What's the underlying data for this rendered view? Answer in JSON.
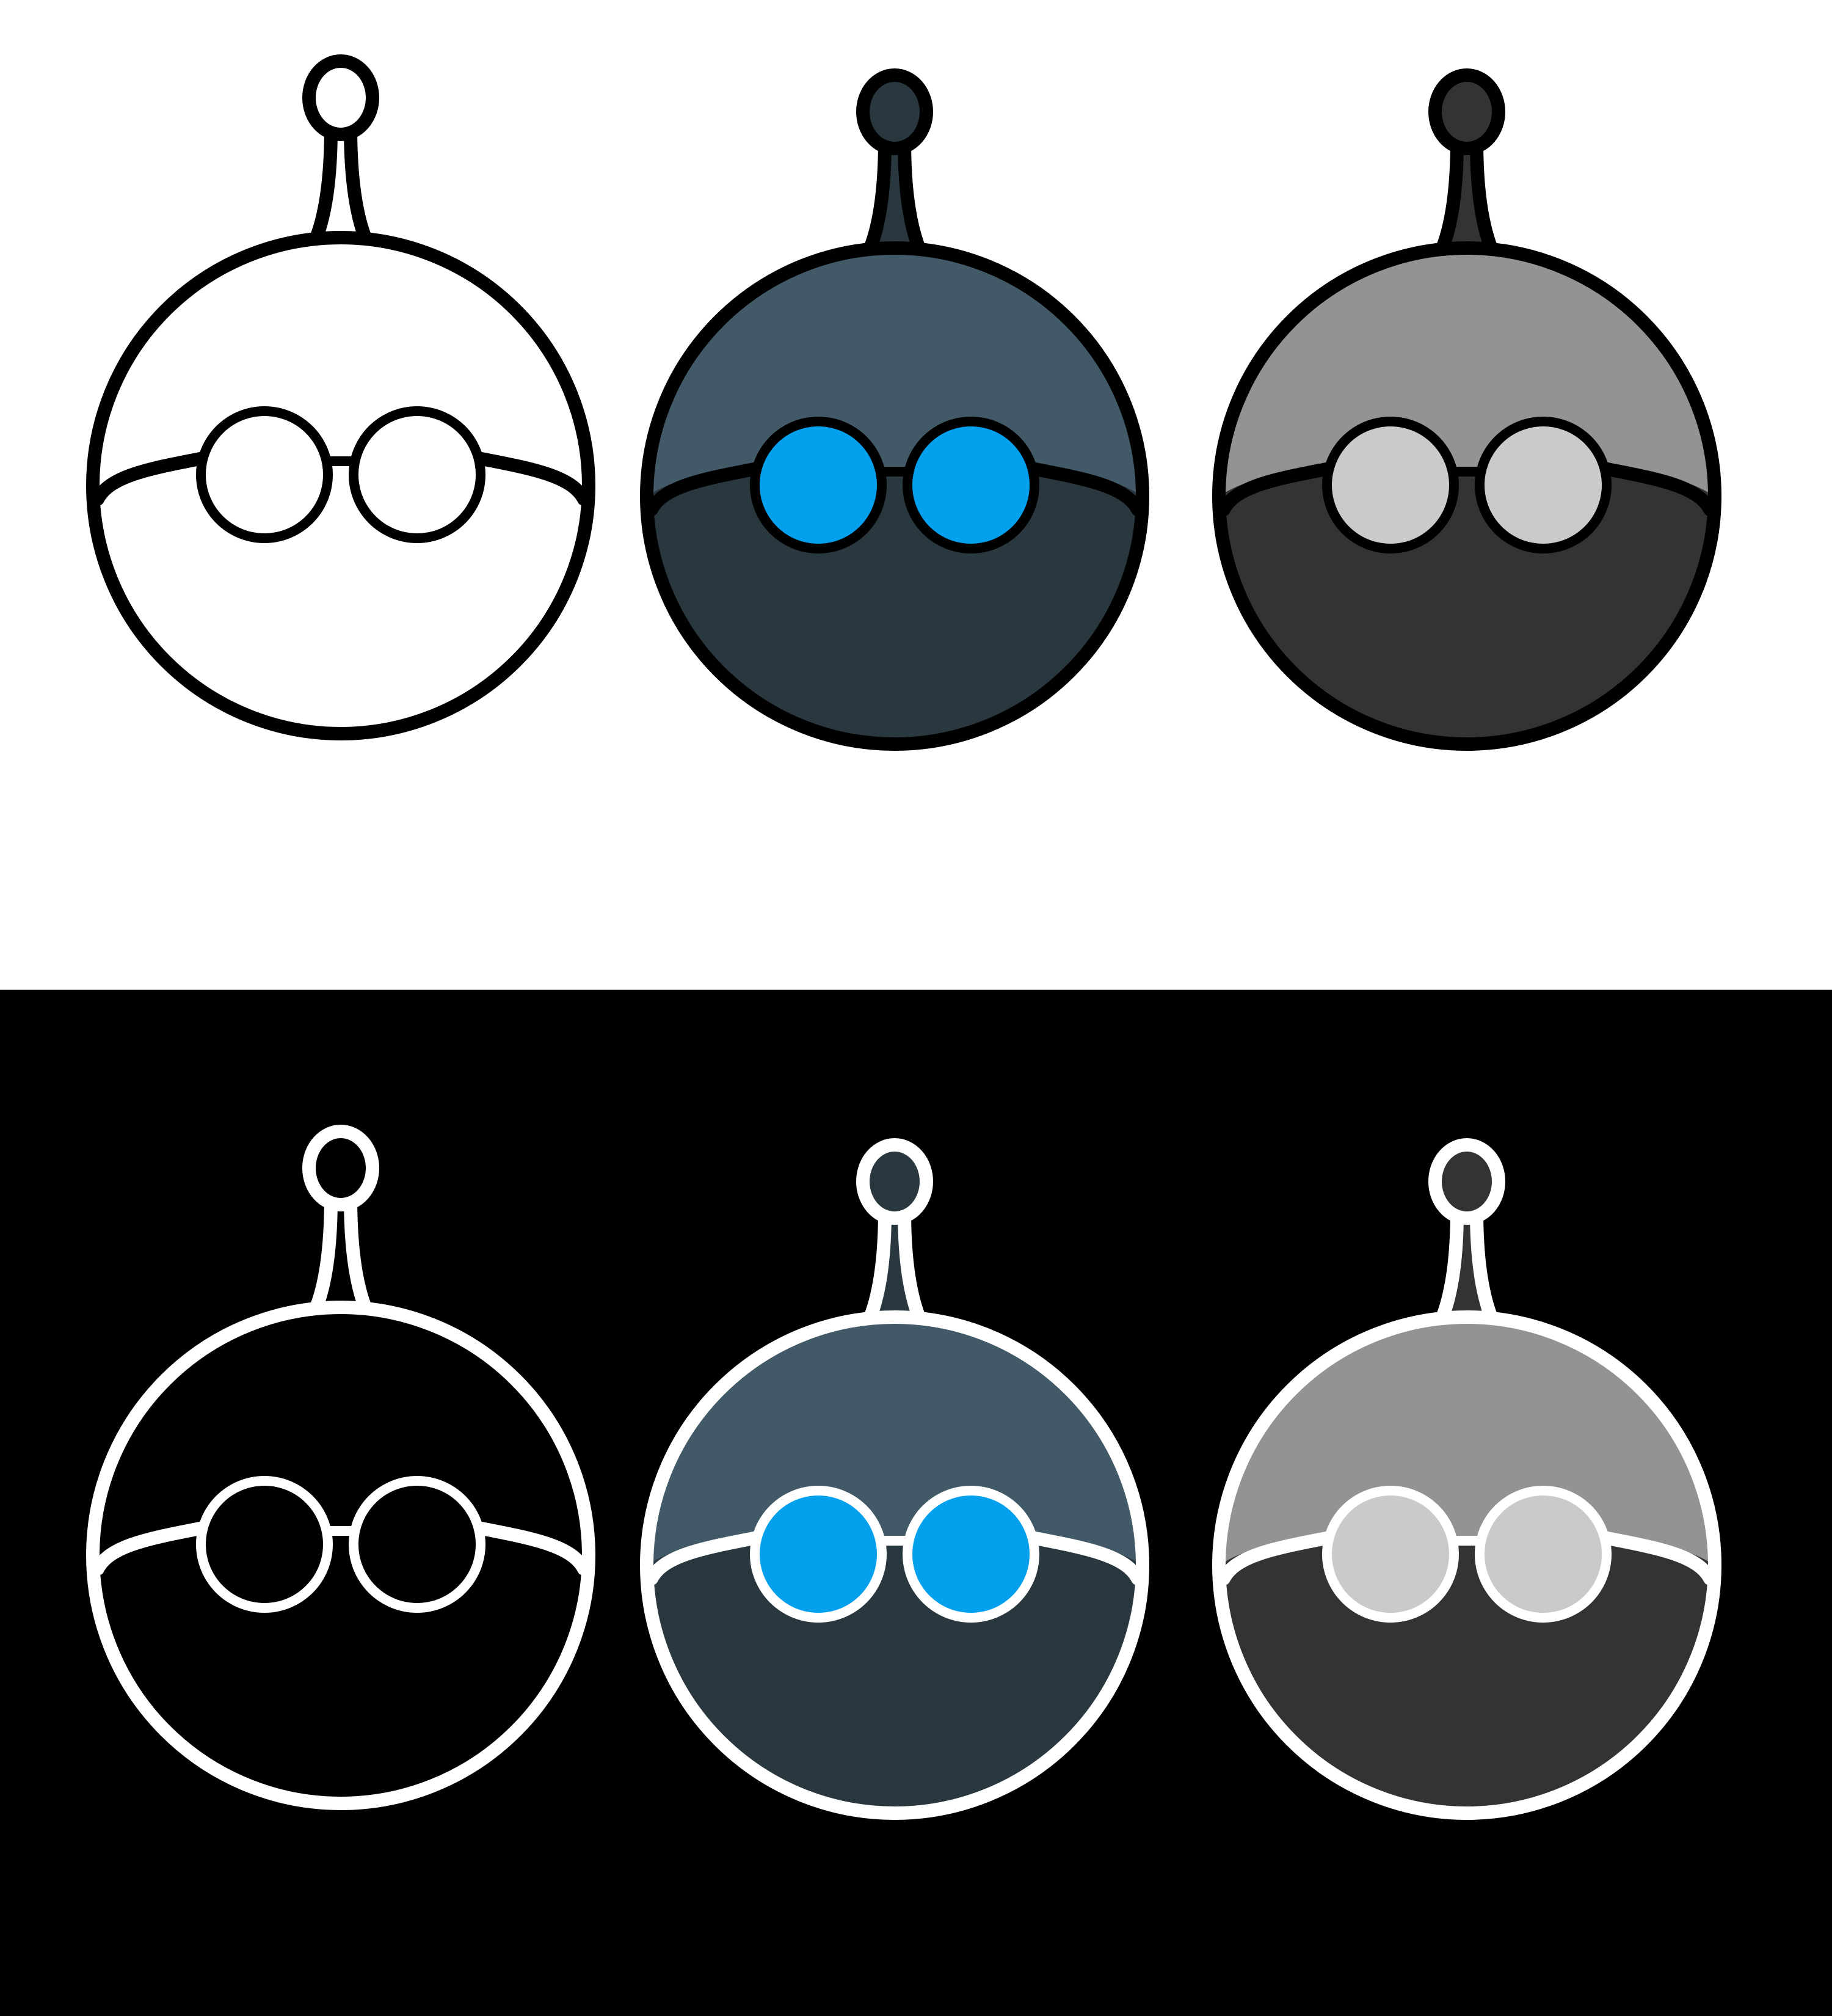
{
  "panels": [
    {
      "name": "light",
      "background": "#ffffff",
      "outline": "#000000",
      "robots": [
        {
          "variant": "outline",
          "icon": "robot-head-icon",
          "antenna_ball": "#ffffff",
          "top": "#ffffff",
          "bottom": "#ffffff",
          "lens": "#ffffff"
        },
        {
          "variant": "slate-blue",
          "icon": "robot-head-icon",
          "antenna_ball": "#29373f",
          "top": "#425a67",
          "bottom": "#29373f",
          "lens": "#03a0ed"
        },
        {
          "variant": "gray",
          "icon": "robot-head-icon",
          "antenna_ball": "#333333",
          "top": "#939393",
          "bottom": "#333333",
          "lens": "#cacaca"
        }
      ]
    },
    {
      "name": "dark",
      "background": "#000000",
      "outline": "#ffffff",
      "robots": [
        {
          "variant": "outline",
          "icon": "robot-head-icon",
          "antenna_ball": "#000000",
          "top": "#000000",
          "bottom": "#000000",
          "lens": "#000000"
        },
        {
          "variant": "slate-blue",
          "icon": "robot-head-icon",
          "antenna_ball": "#29373f",
          "top": "#425a67",
          "bottom": "#29373f",
          "lens": "#03a0ed"
        },
        {
          "variant": "gray",
          "icon": "robot-head-icon",
          "antenna_ball": "#333333",
          "top": "#939393",
          "bottom": "#333333",
          "lens": "#cacaca"
        }
      ]
    }
  ]
}
